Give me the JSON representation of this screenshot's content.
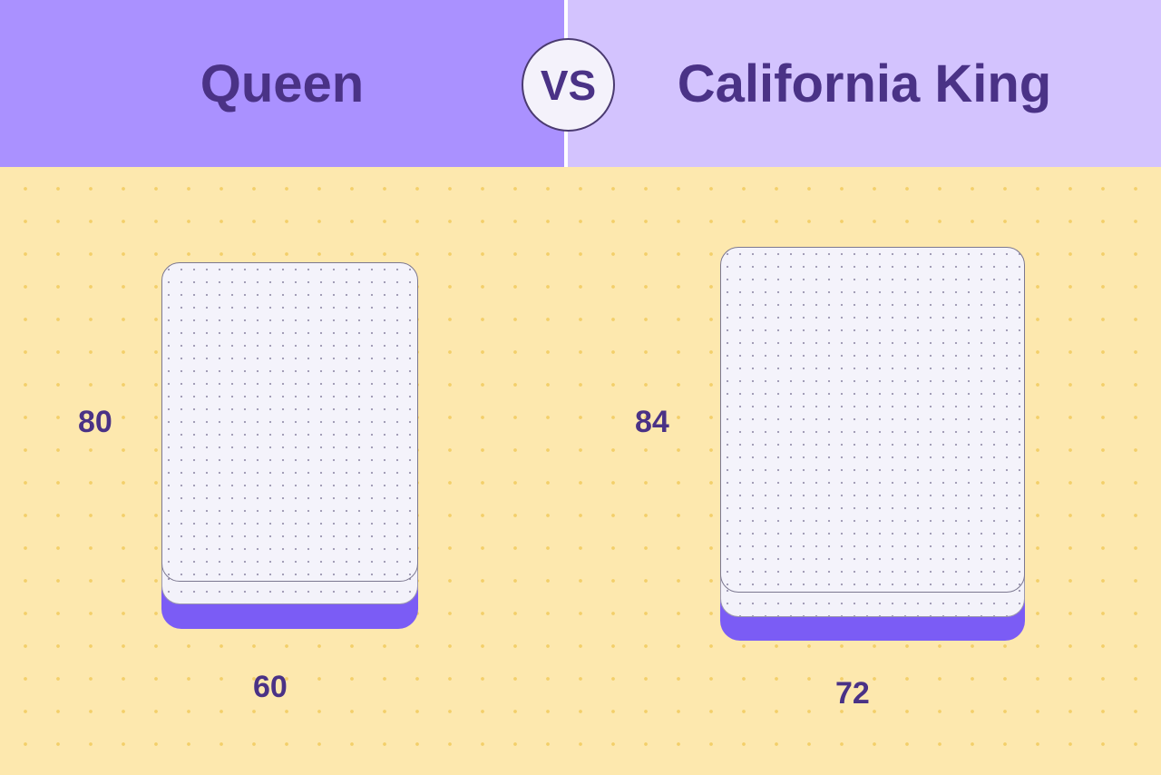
{
  "header": {
    "left_title": "Queen",
    "vs": "VS",
    "right_title": "California King"
  },
  "queen": {
    "length": "80",
    "width": "60"
  },
  "california_king": {
    "length": "84",
    "width": "72"
  },
  "colors": {
    "left_header": "#aa91ff",
    "right_header": "#d3c3fe",
    "text": "#4a3286",
    "mattress_base": "#7b5cf5",
    "background": "#fde8ae"
  }
}
